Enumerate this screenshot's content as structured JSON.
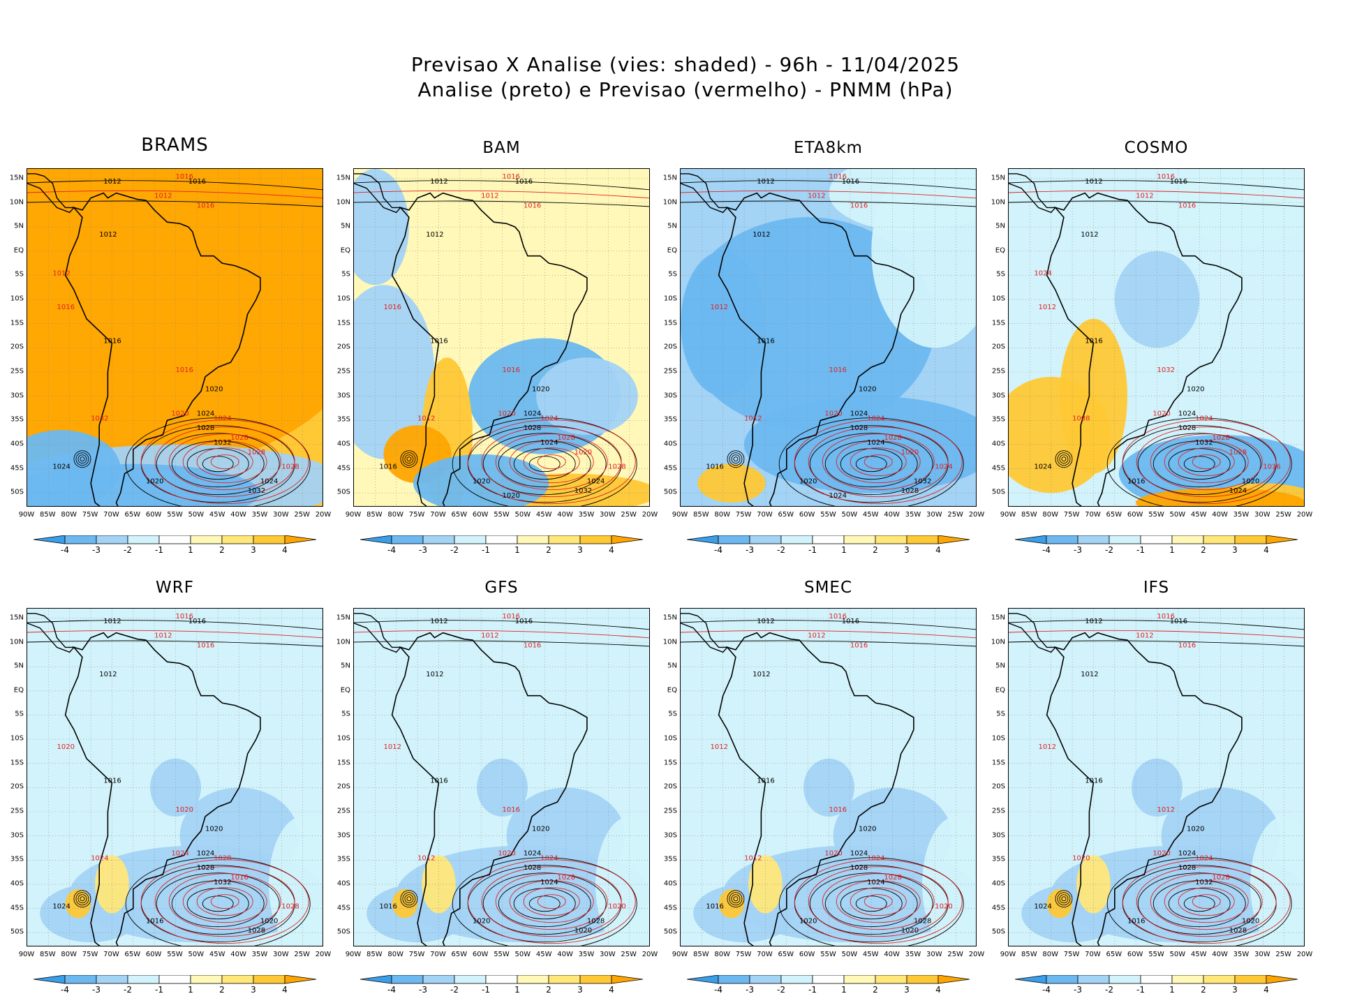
{
  "header": {
    "line1": "Previsao X Analise (vies: shaded) - 96h - 11/04/2025",
    "line2": "Analise (preto) e Previsao (vermelho) - PNMM (hPa)"
  },
  "colors": {
    "neg4": "#3a9ee8",
    "neg3": "#6cb8f0",
    "neg2": "#a3d3f5",
    "neg1": "#d2f3fb",
    "zero": "#ffffff",
    "pos1": "#fff8b8",
    "pos2": "#ffe77a",
    "pos3": "#ffc835",
    "pos4": "#ffa500",
    "analysis_contour": "#000000",
    "forecast_contour": "#e02020"
  },
  "lat_labels": [
    "15N",
    "10N",
    "5N",
    "EQ",
    "5S",
    "10S",
    "15S",
    "20S",
    "25S",
    "30S",
    "35S",
    "40S",
    "45S",
    "50S"
  ],
  "lon_labels": [
    "90W",
    "85W",
    "80W",
    "75W",
    "70W",
    "65W",
    "60W",
    "55W",
    "50W",
    "45W",
    "40W",
    "35W",
    "30W",
    "25W",
    "20W"
  ],
  "colorbar_labels": [
    "-4",
    "-3",
    "-2",
    "-1",
    "1",
    "2",
    "3",
    "4"
  ],
  "models": [
    {
      "name": "BRAMS",
      "bias": "warm",
      "contours_black": [
        "1012",
        "1016",
        "1012",
        "1016",
        "1020",
        "1024",
        "1028",
        "1032",
        "1024",
        "1020",
        "1024",
        "1032"
      ],
      "contours_red": [
        "1016",
        "1012",
        "1016",
        "1016",
        "1020",
        "1024",
        "1028",
        "1016",
        "1032",
        "1028",
        "1028",
        "1012"
      ]
    },
    {
      "name": "BAM",
      "bias": "mixed",
      "contours_black": [
        "1012",
        "1016",
        "1012",
        "1016",
        "1020",
        "1024",
        "1028",
        "1024",
        "1016",
        "1020",
        "1024",
        "1032",
        "1020"
      ],
      "contours_red": [
        "1016",
        "1012",
        "1016",
        "1016",
        "1020",
        "1024",
        "1028",
        "1016",
        "1012",
        "1028",
        "1020"
      ]
    },
    {
      "name": "ETA8km",
      "bias": "cold",
      "contours_black": [
        "1012",
        "1016",
        "1012",
        "1016",
        "1020",
        "1024",
        "1028",
        "1024",
        "1016",
        "1020",
        "1032",
        "1028",
        "1024"
      ],
      "contours_red": [
        "1016",
        "1012",
        "1016",
        "1012",
        "1020",
        "1024",
        "1028",
        "1016",
        "1012",
        "1024",
        "1020"
      ]
    },
    {
      "name": "COSMO",
      "bias": "south-warm",
      "contours_black": [
        "1012",
        "1016",
        "1012",
        "1016",
        "1020",
        "1024",
        "1028",
        "1032",
        "1024",
        "1016",
        "1020",
        "1024"
      ],
      "contours_red": [
        "1016",
        "1012",
        "1016",
        "1012",
        "1020",
        "1024",
        "1028",
        "1032",
        "1008",
        "1016",
        "1028",
        "1024"
      ]
    },
    {
      "name": "WRF",
      "bias": "cold-light",
      "contours_black": [
        "1012",
        "1016",
        "1012",
        "1016",
        "1020",
        "1024",
        "1028",
        "1032",
        "1024",
        "1016",
        "1020",
        "1028"
      ],
      "contours_red": [
        "1016",
        "1012",
        "1016",
        "1020",
        "1024",
        "1028",
        "1016",
        "1020",
        "1024",
        "1028"
      ]
    },
    {
      "name": "GFS",
      "bias": "cold-light",
      "contours_black": [
        "1012",
        "1016",
        "1012",
        "1016",
        "1020",
        "1024",
        "1028",
        "1024",
        "1016",
        "1020",
        "1028",
        "1020"
      ],
      "contours_red": [
        "1016",
        "1012",
        "1016",
        "1012",
        "1020",
        "1024",
        "1028",
        "1016",
        "1012",
        "1020"
      ]
    },
    {
      "name": "SMEC",
      "bias": "cold-light",
      "contours_black": [
        "1012",
        "1016",
        "1012",
        "1016",
        "1020",
        "1024",
        "1028",
        "1024",
        "1016",
        "1020",
        "1028",
        "1020"
      ],
      "contours_red": [
        "1016",
        "1012",
        "1016",
        "1012",
        "1020",
        "1024",
        "1028",
        "1016",
        "1012",
        "1020"
      ]
    },
    {
      "name": "IFS",
      "bias": "cold-light",
      "contours_black": [
        "1012",
        "1016",
        "1012",
        "1016",
        "1020",
        "1024",
        "1028",
        "1032",
        "1024",
        "1016",
        "1020",
        "1028"
      ],
      "contours_red": [
        "1016",
        "1012",
        "1016",
        "1012",
        "1020",
        "1024",
        "1028",
        "1012",
        "1020"
      ]
    }
  ]
}
